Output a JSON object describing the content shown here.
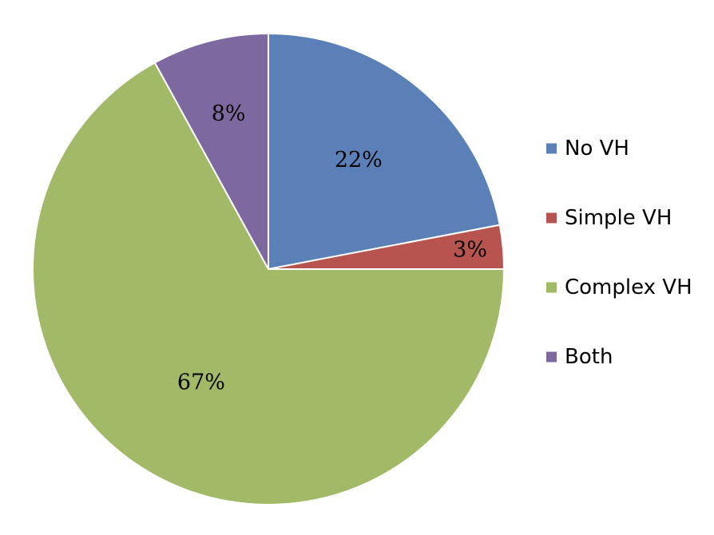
{
  "chart_data": {
    "type": "pie",
    "title": "",
    "categories": [
      "No VH",
      "Simple VH",
      "Complex VH",
      "Both"
    ],
    "values": [
      22,
      3,
      67,
      8
    ],
    "data_labels": [
      "22%",
      "3%",
      "67%",
      "8%"
    ],
    "colors": [
      "#5B80B8",
      "#B85450",
      "#A2B967",
      "#7E68A0"
    ],
    "legend": {
      "position": "right",
      "entries": [
        "No VH",
        "Simple VH",
        "Complex VH",
        "Both"
      ]
    }
  }
}
